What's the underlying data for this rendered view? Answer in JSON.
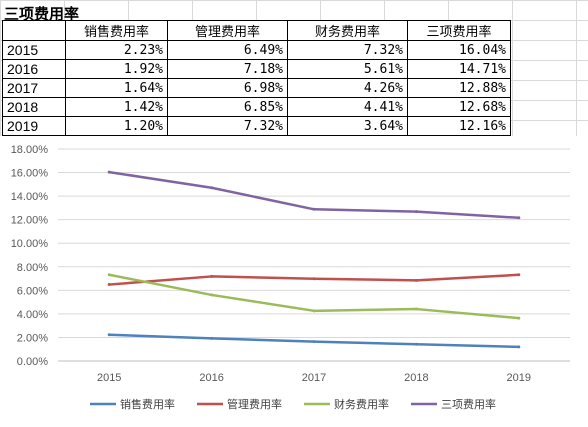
{
  "sheet": {
    "title": "三项费用率",
    "columns": [
      "",
      "销售费用率",
      "管理费用率",
      "财务费用率",
      "三项费用率"
    ],
    "rows": [
      [
        "2015",
        "2.23%",
        "6.49%",
        "7.32%",
        "16.04%"
      ],
      [
        "2016",
        "1.92%",
        "7.18%",
        "5.61%",
        "14.71%"
      ],
      [
        "2017",
        "1.64%",
        "6.98%",
        "4.26%",
        "12.88%"
      ],
      [
        "2018",
        "1.42%",
        "6.85%",
        "4.41%",
        "12.68%"
      ],
      [
        "2019",
        "1.20%",
        "7.32%",
        "3.64%",
        "12.16%"
      ]
    ]
  },
  "chart_data": {
    "type": "line",
    "categories": [
      "2015",
      "2016",
      "2017",
      "2018",
      "2019"
    ],
    "ylim": [
      0,
      18
    ],
    "ytick_labels": [
      "0.00%",
      "2.00%",
      "4.00%",
      "6.00%",
      "8.00%",
      "10.00%",
      "12.00%",
      "14.00%",
      "16.00%",
      "18.00%"
    ],
    "grid": true,
    "legend_position": "bottom",
    "series": [
      {
        "name": "销售费用率",
        "color": "#4f81bd",
        "values": [
          2.23,
          1.92,
          1.64,
          1.42,
          1.2
        ]
      },
      {
        "name": "管理费用率",
        "color": "#c0504d",
        "values": [
          6.49,
          7.18,
          6.98,
          6.85,
          7.32
        ]
      },
      {
        "name": "财务费用率",
        "color": "#9bbb59",
        "values": [
          7.32,
          5.61,
          4.26,
          4.41,
          3.64
        ]
      },
      {
        "name": "三项费用率",
        "color": "#8064a2",
        "values": [
          16.04,
          14.71,
          12.88,
          12.68,
          12.16
        ]
      }
    ]
  }
}
